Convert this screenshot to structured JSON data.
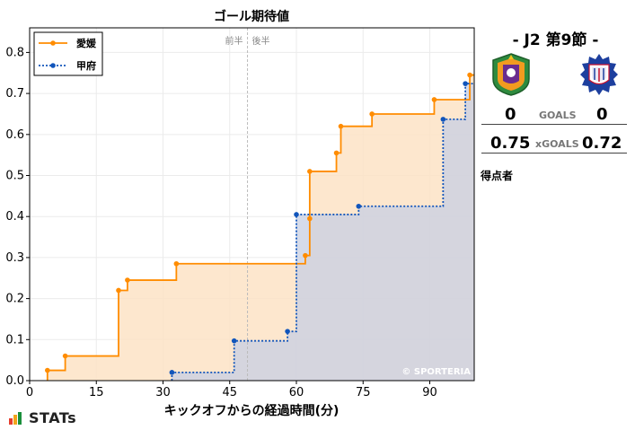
{
  "chart_data": {
    "type": "line",
    "title": "ゴール期待値",
    "xlabel": "キックオフからの経過時間(分)",
    "ylabel": "",
    "xlim": [
      0,
      100
    ],
    "ylim": [
      0,
      0.86
    ],
    "xticks": [
      0,
      15,
      30,
      45,
      60,
      75,
      90
    ],
    "yticks": [
      0,
      0.1,
      0.2,
      0.3,
      0.4,
      0.5,
      0.6,
      0.7,
      0.8
    ],
    "half_divider_x": 49,
    "half_labels": [
      "前半",
      "後半"
    ],
    "grid": true,
    "legend_position": "top-left",
    "watermark": "© SPORTERIA",
    "series": [
      {
        "name": "愛媛",
        "color": "#ff8c00",
        "fill": "#fde3c6",
        "style": "solid",
        "points": [
          [
            4,
            0.025
          ],
          [
            8,
            0.06
          ],
          [
            20,
            0.22
          ],
          [
            22,
            0.245
          ],
          [
            33,
            0.285
          ],
          [
            62,
            0.305
          ],
          [
            63,
            0.395
          ],
          [
            63,
            0.51
          ],
          [
            69,
            0.555
          ],
          [
            70,
            0.62
          ],
          [
            77,
            0.65
          ],
          [
            91,
            0.685
          ],
          [
            99,
            0.745
          ]
        ]
      },
      {
        "name": "甲府",
        "color": "#1155bb",
        "fill": "#c7cfe3",
        "style": "dotted",
        "points": [
          [
            32,
            0.02
          ],
          [
            46,
            0.097
          ],
          [
            58,
            0.12
          ],
          [
            60,
            0.405
          ],
          [
            74,
            0.425
          ],
          [
            93,
            0.637
          ],
          [
            98,
            0.724
          ],
          [
            100,
            0.724
          ]
        ]
      }
    ]
  },
  "match": {
    "title": "- J2 第9節 -",
    "home_emblem": "ehime-fc-crest",
    "away_emblem": "ventforet-kofu-crest",
    "goals_label": "GOALS",
    "home_goals": "0",
    "away_goals": "0",
    "xgoals_label": "xGOALS",
    "home_xg": "0.75",
    "away_xg": "0.72",
    "scorers_label": "得点者"
  },
  "brand": {
    "name": "STATs",
    "bar_colors": [
      "#e63e2e",
      "#f2a51c",
      "#1b8f3c"
    ]
  }
}
